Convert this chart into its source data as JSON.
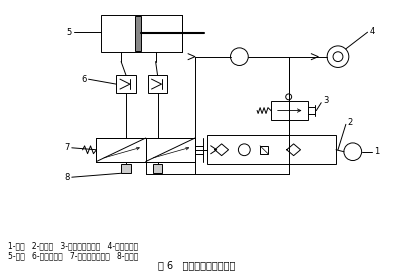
{
  "title": "图 6   气动控制系统原理图",
  "legend_line1": "1-气源   2-三联件   3-二位三通电磁阀   4-气流振动器",
  "legend_line2": "5-气缸   6-单向节流阀   7-二位五通电磁阀   8-消声器",
  "bg_color": "#ffffff",
  "figsize": [
    3.94,
    2.76
  ],
  "dpi": 100
}
